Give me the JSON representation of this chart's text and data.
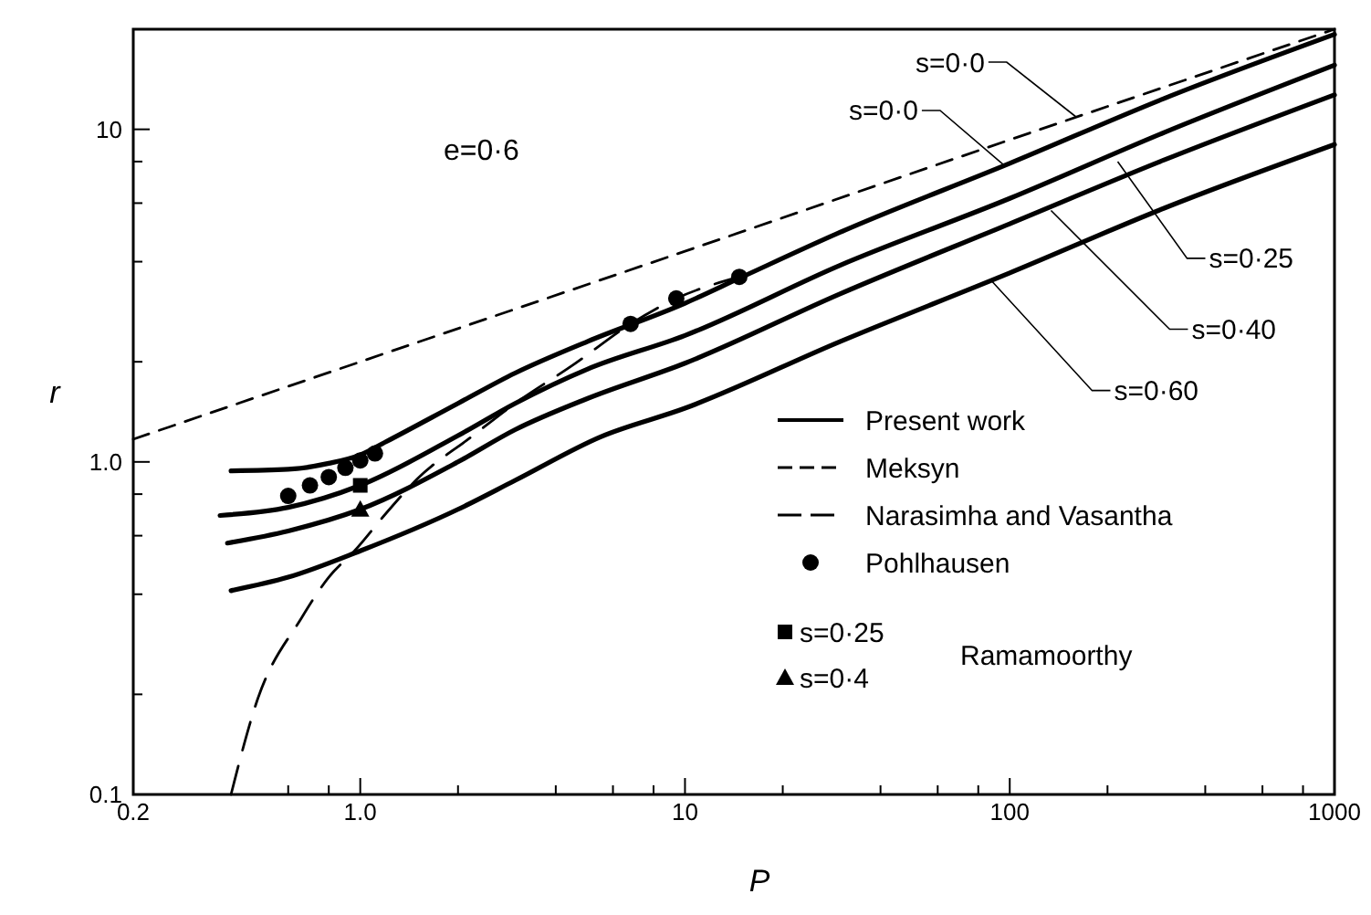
{
  "chart_data": {
    "type": "line",
    "xlabel": "P",
    "ylabel": "r",
    "log": "xy",
    "grid": false,
    "legend": "bottom right",
    "xlim": [
      0.2,
      1000
    ],
    "ylim": [
      0.1,
      20
    ],
    "xticks": [
      {
        "value": 0.2,
        "label": "0.2"
      },
      {
        "value": 0.6,
        "label": null
      },
      {
        "value": 0.8,
        "label": null
      },
      {
        "value": 1,
        "label": "1.0"
      },
      {
        "value": 2,
        "label": null
      },
      {
        "value": 4,
        "label": null
      },
      {
        "value": 6,
        "label": null
      },
      {
        "value": 8,
        "label": null
      },
      10,
      {
        "value": 20,
        "label": null
      },
      {
        "value": 40,
        "label": null
      },
      {
        "value": 60,
        "label": null
      },
      {
        "value": 80,
        "label": null
      },
      100,
      {
        "value": 200,
        "label": null
      },
      {
        "value": 400,
        "label": null
      },
      {
        "value": 600,
        "label": null
      },
      {
        "value": 800,
        "label": null
      },
      1000
    ],
    "yticks": [
      {
        "value": 0.1,
        "label": "0.1"
      },
      {
        "value": 0.2,
        "label": null
      },
      {
        "value": 0.4,
        "label": null
      },
      {
        "value": 0.6,
        "label": null
      },
      {
        "value": 0.8,
        "label": null
      },
      {
        "value": 1,
        "label": "1.0"
      },
      {
        "value": 2,
        "label": null
      },
      {
        "value": 4,
        "label": null
      },
      {
        "value": 6,
        "label": null
      },
      {
        "value": 8,
        "label": null
      },
      10
    ],
    "series": [
      {
        "name": "Present work",
        "color": "#000000",
        "line_style": "solid",
        "x": [
          0.4,
          0.6,
          0.8,
          1,
          1.2,
          2,
          3,
          5,
          10,
          15,
          30,
          100,
          300,
          1000
        ],
        "values": [
          0.94,
          0.95,
          0.99,
          1.05,
          1.15,
          1.5,
          1.85,
          2.3,
          3.0,
          3.6,
          4.9,
          7.9,
          12.4,
          19.3
        ]
      },
      {
        "color": "#000000",
        "line_style": "solid",
        "x": [
          0.37,
          0.6,
          1,
          2,
          3,
          5,
          10,
          30,
          100,
          300,
          1000
        ],
        "values": [
          0.69,
          0.73,
          0.85,
          1.2,
          1.5,
          1.9,
          2.4,
          3.9,
          6.2,
          9.8,
          15.6
        ]
      },
      {
        "color": "#000000",
        "line_style": "solid",
        "x": [
          0.39,
          0.6,
          1,
          2,
          3,
          5,
          10,
          30,
          100,
          300,
          1000
        ],
        "values": [
          0.57,
          0.62,
          0.72,
          1.0,
          1.25,
          1.55,
          1.98,
          3.2,
          5.2,
          8.1,
          12.7
        ]
      },
      {
        "color": "#000000",
        "line_style": "solid",
        "x": [
          0.4,
          0.6,
          1,
          2,
          3,
          5.5,
          10,
          30,
          100,
          300,
          1000
        ],
        "values": [
          0.41,
          0.45,
          0.54,
          0.72,
          0.88,
          1.19,
          1.45,
          2.3,
          3.7,
          5.8,
          9.0
        ]
      },
      {
        "name": "Meksyn",
        "color": "#000000",
        "line_style": "dashed",
        "x": [
          0.2,
          1,
          10,
          100,
          1000
        ],
        "values": [
          1.17,
          2.0,
          4.3,
          9.3,
          20
        ]
      },
      {
        "name": "Narasimha and Vasantha",
        "color": "#000000",
        "line_style": "dashed",
        "x": [
          0.4,
          0.48,
          0.66,
          0.8,
          0.96,
          1.2,
          1.5,
          2.2,
          3,
          4.5,
          6.8,
          9.4,
          14.7
        ],
        "values": [
          0.1,
          0.19,
          0.34,
          0.45,
          0.54,
          0.7,
          0.89,
          1.19,
          1.5,
          1.95,
          2.6,
          3.1,
          3.6
        ]
      },
      {
        "name": "Pohlhausen",
        "type": "scatter",
        "marker": "circle",
        "color": "#000000",
        "x": [
          0.6,
          0.7,
          0.8,
          0.9,
          1.0,
          1.11,
          6.8,
          9.4,
          14.7
        ],
        "values": [
          0.79,
          0.85,
          0.9,
          0.96,
          1.01,
          1.06,
          2.6,
          3.1,
          3.6
        ]
      },
      {
        "name": "s=0·25",
        "type": "scatter",
        "marker": "square",
        "color": "#000000",
        "x": [
          1.0
        ],
        "values": [
          0.85
        ]
      },
      {
        "name": "s=0·4",
        "type": "scatter",
        "marker": "triangle",
        "color": "#000000",
        "x": [
          1.0
        ],
        "values": [
          0.72
        ]
      }
    ],
    "annotations": [
      "e=0·6",
      {
        "text": "s=0·0",
        "x": 160,
        "y": 10.9
      },
      {
        "text": "s=0·0",
        "x": 96,
        "y": 7.8
      },
      {
        "text": "s=0·25",
        "x": 215,
        "y": 8.0
      },
      {
        "text": "s=0·40",
        "x": 134,
        "y": 5.7
      },
      {
        "text": "s=0·60",
        "x": 88,
        "y": 3.5
      },
      "Ramamoorthy"
    ]
  }
}
